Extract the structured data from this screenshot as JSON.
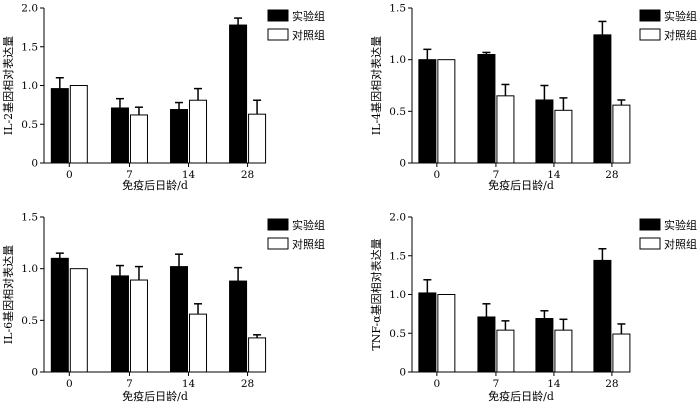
{
  "chart_data": [
    {
      "type": "bar",
      "categories": [
        "0",
        "7",
        "14",
        "28"
      ],
      "xlabel": "免疫后日龄/d",
      "ylabel": "IL-2基因相对表达量",
      "ylim": [
        0,
        2.0
      ],
      "yticks": [
        "0",
        "0.5",
        "1.0",
        "1.5",
        "2.0"
      ],
      "legend_position": "top-right",
      "series": [
        {
          "name": "实验组",
          "color": "#000000",
          "values": [
            0.96,
            0.71,
            0.69,
            1.78
          ],
          "errors": [
            0.14,
            0.12,
            0.09,
            0.09
          ]
        },
        {
          "name": "对照组",
          "color": "#ffffff",
          "values": [
            1.0,
            0.62,
            0.81,
            0.63
          ],
          "errors": [
            0.0,
            0.1,
            0.15,
            0.18
          ]
        }
      ]
    },
    {
      "type": "bar",
      "categories": [
        "0",
        "7",
        "14",
        "28"
      ],
      "xlabel": "免疫后日龄/d",
      "ylabel": "IL-4基因相对表达量",
      "ylim": [
        0,
        1.5
      ],
      "yticks": [
        "0",
        "0.5",
        "1.0",
        "1.5"
      ],
      "legend_position": "top-right",
      "series": [
        {
          "name": "实验组",
          "color": "#000000",
          "values": [
            1.0,
            1.05,
            0.61,
            1.24
          ],
          "errors": [
            0.1,
            0.02,
            0.14,
            0.13
          ]
        },
        {
          "name": "对照组",
          "color": "#ffffff",
          "values": [
            1.0,
            0.65,
            0.51,
            0.56
          ],
          "errors": [
            0.0,
            0.11,
            0.12,
            0.05
          ]
        }
      ]
    },
    {
      "type": "bar",
      "categories": [
        "0",
        "7",
        "14",
        "28"
      ],
      "xlabel": "免疫后日龄/d",
      "ylabel": "IL-6基因相对表达量",
      "ylim": [
        0,
        1.5
      ],
      "yticks": [
        "0",
        "0.5",
        "1.0",
        "1.5"
      ],
      "legend_position": "top-right",
      "series": [
        {
          "name": "实验组",
          "color": "#000000",
          "values": [
            1.1,
            0.93,
            1.02,
            0.88
          ],
          "errors": [
            0.05,
            0.1,
            0.12,
            0.13
          ]
        },
        {
          "name": "对照组",
          "color": "#ffffff",
          "values": [
            1.0,
            0.89,
            0.56,
            0.33
          ],
          "errors": [
            0.0,
            0.13,
            0.1,
            0.03
          ]
        }
      ]
    },
    {
      "type": "bar",
      "categories": [
        "0",
        "7",
        "14",
        "28"
      ],
      "xlabel": "免疫后日龄/d",
      "ylabel": "TNF-α基因相对表达量",
      "ylim": [
        0,
        2.0
      ],
      "yticks": [
        "0",
        "0.5",
        "1.0",
        "1.5",
        "2.0"
      ],
      "legend_position": "top-right",
      "series": [
        {
          "name": "实验组",
          "color": "#000000",
          "values": [
            1.02,
            0.71,
            0.69,
            1.44
          ],
          "errors": [
            0.17,
            0.17,
            0.1,
            0.15
          ]
        },
        {
          "name": "对照组",
          "color": "#ffffff",
          "values": [
            1.0,
            0.54,
            0.54,
            0.49
          ],
          "errors": [
            0.0,
            0.12,
            0.14,
            0.13
          ]
        }
      ]
    }
  ]
}
